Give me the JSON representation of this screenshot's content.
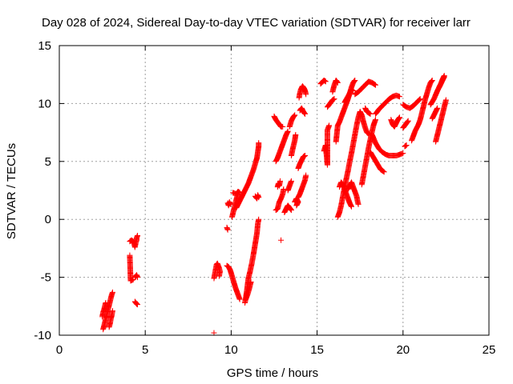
{
  "chart_data": {
    "type": "scatter",
    "title": "Day 028 of 2024, Sidereal Day-to-day VTEC variation (SDTVAR) for receiver larr",
    "xlabel": "GPS time / hours",
    "ylabel": "SDTVAR / TECUs",
    "xlim": [
      0,
      25
    ],
    "ylim": [
      -10,
      15
    ],
    "xticks": [
      0,
      5,
      10,
      15,
      20,
      25
    ],
    "yticks": [
      -10,
      -5,
      0,
      5,
      10,
      15
    ],
    "xtick_labels": [
      "0",
      "5",
      "10",
      "15",
      "20",
      "25"
    ],
    "ytick_labels": [
      "-10",
      "-5",
      "0",
      "5",
      "10",
      "15"
    ],
    "grid": true,
    "marker": "+",
    "color": "#ff0000",
    "segments": [
      [
        [
          2.55,
          -9.5
        ],
        [
          2.6,
          -9.2
        ],
        [
          2.65,
          -8.9
        ],
        [
          2.7,
          -8.6
        ],
        [
          2.75,
          -8.3
        ],
        [
          2.8,
          -8.0
        ],
        [
          2.85,
          -7.7
        ],
        [
          2.9,
          -7.4
        ],
        [
          2.95,
          -7.1
        ],
        [
          3.0,
          -6.8
        ],
        [
          3.05,
          -6.5
        ],
        [
          3.1,
          -6.3
        ]
      ],
      [
        [
          2.5,
          -8.4
        ],
        [
          2.55,
          -8.0
        ],
        [
          2.6,
          -7.8
        ],
        [
          2.65,
          -7.5
        ],
        [
          2.7,
          -7.2
        ]
      ],
      [
        [
          2.9,
          -9.3
        ],
        [
          2.95,
          -9.0
        ],
        [
          3.0,
          -8.6
        ],
        [
          3.05,
          -8.3
        ],
        [
          3.1,
          -7.9
        ]
      ],
      [
        [
          4.1,
          -1.9
        ],
        [
          4.2,
          -1.8
        ],
        [
          4.3,
          -1.9
        ],
        [
          4.35,
          -2.1
        ],
        [
          4.4,
          -2.4
        ],
        [
          4.45,
          -2.0
        ],
        [
          4.5,
          -1.8
        ],
        [
          4.5,
          -1.6
        ],
        [
          4.55,
          -1.4
        ]
      ],
      [
        [
          4.1,
          -3.1
        ],
        [
          4.15,
          -5.3
        ],
        [
          4.3,
          -5.2
        ]
      ],
      [
        [
          4.4,
          -5.0
        ],
        [
          4.45,
          -4.9
        ],
        [
          4.5,
          -4.8
        ],
        [
          4.55,
          -5.0
        ]
      ],
      [
        [
          4.4,
          -7.1
        ],
        [
          4.45,
          -7.2
        ],
        [
          4.5,
          -7.3
        ],
        [
          4.55,
          -7.35
        ]
      ],
      [
        [
          9.0,
          -9.8
        ]
      ],
      [
        [
          9.0,
          -5.1
        ],
        [
          9.05,
          -4.7
        ],
        [
          9.1,
          -4.3
        ],
        [
          9.15,
          -3.9
        ],
        [
          9.2,
          -3.8
        ],
        [
          9.25,
          -4.0
        ],
        [
          9.3,
          -4.2
        ],
        [
          9.35,
          -4.5
        ],
        [
          9.3,
          -4.9
        ]
      ],
      [
        [
          9.75,
          -0.7
        ],
        [
          9.8,
          -0.9
        ]
      ],
      [
        [
          9.8,
          1.4
        ],
        [
          9.85,
          1.2
        ],
        [
          9.9,
          1.5
        ],
        [
          9.95,
          1.3
        ]
      ],
      [
        [
          9.75,
          -4.0
        ],
        [
          9.85,
          -4.1
        ],
        [
          9.95,
          -4.4
        ],
        [
          10.05,
          -4.9
        ],
        [
          10.15,
          -5.4
        ],
        [
          10.25,
          -5.9
        ],
        [
          10.35,
          -6.3
        ],
        [
          10.45,
          -6.7
        ],
        [
          10.5,
          -6.9
        ]
      ],
      [
        [
          10.05,
          0.2
        ],
        [
          10.1,
          0.5
        ],
        [
          10.15,
          0.8
        ],
        [
          10.2,
          1.1
        ],
        [
          10.25,
          1.4
        ],
        [
          10.3,
          1.7
        ],
        [
          10.35,
          2.0
        ],
        [
          10.4,
          2.2
        ]
      ],
      [
        [
          10.1,
          2.3
        ],
        [
          10.2,
          2.25
        ],
        [
          10.3,
          2.2
        ],
        [
          10.4,
          2.4
        ],
        [
          10.5,
          2.3
        ]
      ],
      [
        [
          10.3,
          1.0
        ],
        [
          10.4,
          1.3
        ],
        [
          10.5,
          1.6
        ],
        [
          10.6,
          1.9
        ],
        [
          10.7,
          2.2
        ],
        [
          10.8,
          2.5
        ],
        [
          10.9,
          2.8
        ],
        [
          11.0,
          3.1
        ],
        [
          11.1,
          3.5
        ],
        [
          11.2,
          3.9
        ],
        [
          11.3,
          4.3
        ],
        [
          11.4,
          4.8
        ],
        [
          11.5,
          5.3
        ],
        [
          11.55,
          5.8
        ],
        [
          11.6,
          6.3
        ],
        [
          11.6,
          6.6
        ]
      ],
      [
        [
          10.8,
          -7.2
        ],
        [
          10.85,
          -6.8
        ],
        [
          10.9,
          -6.3
        ],
        [
          10.95,
          -5.7
        ],
        [
          11.0,
          -5.1
        ],
        [
          11.1,
          -4.5
        ],
        [
          11.2,
          -3.8
        ],
        [
          11.3,
          -3.0
        ],
        [
          11.4,
          -2.1
        ],
        [
          11.5,
          -1.2
        ],
        [
          11.55,
          -0.4
        ],
        [
          11.6,
          0.0
        ]
      ],
      [
        [
          11.4,
          2.0
        ],
        [
          11.5,
          1.8
        ],
        [
          11.55,
          2.1
        ],
        [
          11.6,
          1.9
        ]
      ],
      [
        [
          10.85,
          -6.9
        ],
        [
          10.95,
          -6.5
        ],
        [
          11.05,
          -6.0
        ],
        [
          11.15,
          -5.4
        ]
      ],
      [
        [
          12.6,
          0.8
        ],
        [
          12.7,
          0.9
        ],
        [
          12.75,
          1.2
        ],
        [
          12.8,
          1.5
        ],
        [
          12.9,
          1.8
        ],
        [
          13.0,
          2.2
        ],
        [
          13.05,
          2.6
        ]
      ],
      [
        [
          12.7,
          2.8
        ],
        [
          12.75,
          3.1
        ],
        [
          12.8,
          2.9
        ],
        [
          12.85,
          3.3
        ]
      ],
      [
        [
          12.6,
          5.0
        ],
        [
          12.7,
          5.3
        ],
        [
          12.8,
          5.7
        ],
        [
          12.9,
          6.1
        ],
        [
          13.0,
          6.5
        ],
        [
          13.1,
          6.9
        ],
        [
          13.2,
          7.3
        ],
        [
          13.3,
          7.6
        ]
      ],
      [
        [
          12.9,
          -1.8
        ]
      ],
      [
        [
          12.5,
          8.9
        ],
        [
          12.6,
          8.6
        ],
        [
          12.7,
          8.4
        ],
        [
          12.8,
          8.2
        ],
        [
          12.9,
          8.0
        ],
        [
          13.0,
          8.0
        ]
      ],
      [
        [
          13.1,
          0.6
        ],
        [
          13.2,
          0.9
        ],
        [
          13.3,
          1.2
        ],
        [
          13.4,
          1.0
        ],
        [
          13.5,
          0.8
        ]
      ],
      [
        [
          13.3,
          2.5
        ],
        [
          13.4,
          2.9
        ],
        [
          13.5,
          3.3
        ]
      ],
      [
        [
          13.4,
          8.0
        ],
        [
          13.5,
          8.5
        ],
        [
          13.6,
          8.8
        ],
        [
          13.7,
          9.0
        ]
      ],
      [
        [
          13.5,
          5.5
        ],
        [
          13.6,
          6.2
        ],
        [
          13.7,
          6.8
        ],
        [
          13.75,
          7.3
        ]
      ],
      [
        [
          13.7,
          1.5
        ],
        [
          13.8,
          1.8
        ],
        [
          13.9,
          1.5
        ],
        [
          13.8,
          1.2
        ]
      ],
      [
        [
          13.9,
          4.4
        ],
        [
          14.0,
          4.8
        ],
        [
          14.1,
          5.1
        ],
        [
          14.2,
          5.4
        ],
        [
          14.3,
          5.5
        ]
      ],
      [
        [
          13.9,
          1.9
        ],
        [
          14.0,
          2.2
        ],
        [
          14.1,
          2.6
        ],
        [
          14.2,
          3.0
        ],
        [
          14.3,
          3.4
        ],
        [
          14.35,
          3.8
        ]
      ],
      [
        [
          13.95,
          10.5
        ],
        [
          14.0,
          10.9
        ],
        [
          14.05,
          11.2
        ],
        [
          14.15,
          11.5
        ],
        [
          14.25,
          11.3
        ],
        [
          14.3,
          11.1
        ],
        [
          14.35,
          10.8
        ]
      ],
      [
        [
          14.0,
          9.4
        ],
        [
          14.1,
          9.6
        ],
        [
          14.2,
          9.3
        ],
        [
          14.3,
          9.1
        ]
      ],
      [
        [
          15.2,
          11.7
        ],
        [
          15.4,
          12.0
        ],
        [
          15.5,
          11.9
        ]
      ],
      [
        [
          15.4,
          5.9
        ],
        [
          15.5,
          6.4
        ],
        [
          15.6,
          4.7
        ],
        [
          15.6,
          7.7
        ],
        [
          15.7,
          8.1
        ]
      ],
      [
        [
          15.6,
          9.7
        ],
        [
          15.75,
          10.0
        ],
        [
          15.9,
          10.3
        ],
        [
          16.0,
          10.4
        ]
      ],
      [
        [
          15.9,
          11.0
        ],
        [
          16.0,
          11.6
        ],
        [
          16.1,
          12.0
        ],
        [
          16.2,
          11.8
        ]
      ],
      [
        [
          16.1,
          6.7
        ],
        [
          16.15,
          7.4
        ],
        [
          16.2,
          8.1
        ],
        [
          16.3,
          8.4
        ],
        [
          16.4,
          8.8
        ],
        [
          16.5,
          9.2
        ],
        [
          16.6,
          9.6
        ],
        [
          16.7,
          10.0
        ],
        [
          16.8,
          10.4
        ],
        [
          16.9,
          10.9
        ],
        [
          17.0,
          11.4
        ],
        [
          17.1,
          11.8
        ],
        [
          17.2,
          12.0
        ]
      ],
      [
        [
          16.2,
          0.2
        ],
        [
          16.3,
          0.6
        ],
        [
          16.4,
          1.2
        ],
        [
          16.5,
          2.0
        ],
        [
          16.6,
          2.8
        ],
        [
          16.7,
          3.5
        ],
        [
          16.8,
          4.2
        ],
        [
          16.9,
          5.0
        ],
        [
          17.0,
          5.7
        ],
        [
          17.1,
          6.5
        ],
        [
          17.2,
          7.3
        ],
        [
          17.3,
          8.1
        ],
        [
          17.4,
          8.8
        ],
        [
          17.5,
          9.3
        ],
        [
          17.6,
          9.0
        ],
        [
          17.7,
          8.4
        ],
        [
          17.8,
          7.9
        ],
        [
          17.9,
          7.5
        ],
        [
          18.0,
          7.4
        ]
      ],
      [
        [
          16.3,
          2.8
        ],
        [
          16.4,
          3.2
        ],
        [
          16.5,
          3.0
        ],
        [
          16.6,
          2.6
        ],
        [
          16.7,
          2.2
        ],
        [
          16.8,
          1.8
        ],
        [
          16.9,
          1.4
        ],
        [
          17.0,
          1.1
        ]
      ],
      [
        [
          16.8,
          2.6
        ],
        [
          16.9,
          2.9
        ],
        [
          17.0,
          3.2
        ],
        [
          17.1,
          2.8
        ],
        [
          17.2,
          2.4
        ],
        [
          17.3,
          2.0
        ],
        [
          17.35,
          1.6
        ],
        [
          17.4,
          1.3
        ]
      ],
      [
        [
          16.6,
          10.1
        ],
        [
          16.75,
          10.5
        ],
        [
          16.9,
          10.9
        ],
        [
          17.0,
          11.2
        ],
        [
          17.1,
          11.1
        ]
      ],
      [
        [
          17.2,
          10.8
        ],
        [
          17.4,
          11.0
        ],
        [
          17.6,
          11.3
        ],
        [
          17.8,
          11.6
        ],
        [
          18.0,
          11.9
        ],
        [
          18.2,
          11.8
        ],
        [
          18.4,
          11.6
        ]
      ],
      [
        [
          17.6,
          3.0
        ],
        [
          17.7,
          3.8
        ],
        [
          17.8,
          4.6
        ],
        [
          17.9,
          5.4
        ],
        [
          18.0,
          6.2
        ],
        [
          18.1,
          6.9
        ],
        [
          18.2,
          7.6
        ],
        [
          18.3,
          8.2
        ],
        [
          18.4,
          8.6
        ]
      ],
      [
        [
          17.8,
          9.6
        ],
        [
          17.9,
          9.3
        ],
        [
          18.0,
          9.2
        ],
        [
          18.1,
          9.1
        ]
      ],
      [
        [
          18.1,
          5.8
        ],
        [
          18.3,
          5.3
        ],
        [
          18.5,
          4.8
        ],
        [
          18.7,
          4.3
        ],
        [
          18.9,
          4.1
        ]
      ],
      [
        [
          18.2,
          7.3
        ],
        [
          18.4,
          6.6
        ],
        [
          18.6,
          6.1
        ],
        [
          18.8,
          5.8
        ],
        [
          19.0,
          5.6
        ],
        [
          19.2,
          5.5
        ],
        [
          19.4,
          5.5
        ],
        [
          19.6,
          5.5
        ],
        [
          19.8,
          5.6
        ],
        [
          20.0,
          5.7
        ]
      ],
      [
        [
          18.4,
          9.1
        ],
        [
          18.6,
          9.5
        ],
        [
          18.8,
          9.8
        ],
        [
          19.0,
          10.1
        ],
        [
          19.2,
          10.4
        ],
        [
          19.4,
          10.6
        ],
        [
          19.6,
          10.7
        ],
        [
          19.8,
          10.6
        ]
      ],
      [
        [
          19.3,
          8.6
        ],
        [
          19.4,
          8.2
        ],
        [
          19.5,
          8.0
        ],
        [
          19.6,
          8.3
        ],
        [
          19.7,
          8.6
        ],
        [
          19.8,
          8.8
        ]
      ],
      [
        [
          20.1,
          6.3
        ],
        [
          20.2,
          6.4
        ]
      ],
      [
        [
          20.0,
          7.9
        ],
        [
          20.1,
          8.1
        ],
        [
          20.2,
          8.3
        ],
        [
          20.3,
          8.5
        ]
      ],
      [
        [
          20.0,
          9.9
        ],
        [
          20.2,
          9.7
        ],
        [
          20.4,
          9.6
        ],
        [
          20.6,
          9.8
        ],
        [
          20.8,
          10.1
        ],
        [
          21.0,
          10.4
        ]
      ],
      [
        [
          20.5,
          6.8
        ],
        [
          20.6,
          7.2
        ],
        [
          20.7,
          7.6
        ],
        [
          20.8,
          7.9
        ],
        [
          20.9,
          8.2
        ],
        [
          21.0,
          8.6
        ],
        [
          21.1,
          9.2
        ],
        [
          21.2,
          9.8
        ],
        [
          21.3,
          10.4
        ],
        [
          21.4,
          10.9
        ],
        [
          21.5,
          11.4
        ],
        [
          21.6,
          11.8
        ],
        [
          21.7,
          12.0
        ]
      ],
      [
        [
          21.6,
          9.9
        ],
        [
          21.8,
          10.4
        ],
        [
          22.0,
          11.1
        ],
        [
          22.2,
          11.7
        ],
        [
          22.4,
          12.3
        ]
      ],
      [
        [
          21.7,
          8.7
        ],
        [
          21.8,
          9.0
        ],
        [
          21.9,
          9.3
        ],
        [
          22.0,
          9.6
        ]
      ],
      [
        [
          21.9,
          6.7
        ],
        [
          22.0,
          7.3
        ],
        [
          22.1,
          7.9
        ],
        [
          22.2,
          8.5
        ],
        [
          22.3,
          9.1
        ],
        [
          22.4,
          9.7
        ],
        [
          22.5,
          10.3
        ]
      ],
      [
        [
          22.1,
          11.4
        ],
        [
          22.2,
          11.7
        ],
        [
          22.3,
          12.1
        ],
        [
          22.4,
          12.4
        ]
      ]
    ]
  }
}
